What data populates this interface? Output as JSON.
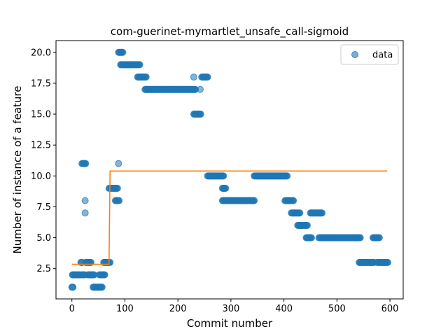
{
  "chart_data": {
    "type": "scatter",
    "title": "com-guerinet-mymartlet_unsafe_call-sigmoid",
    "xlabel": "Commit number",
    "ylabel": "Number of instance of a feature",
    "xlim": [
      -30,
      625
    ],
    "ylim": [
      0.05,
      20.95
    ],
    "xticks": [
      0,
      100,
      200,
      300,
      400,
      500,
      600
    ],
    "yticks": [
      2.5,
      5.0,
      7.5,
      10.0,
      12.5,
      15.0,
      17.5,
      20.0
    ],
    "xtick_labels": [
      "0",
      "100",
      "200",
      "300",
      "400",
      "500",
      "600"
    ],
    "ytick_labels": [
      "2.5",
      "5.0",
      "7.5",
      "10.0",
      "12.5",
      "15.0",
      "17.5",
      "20.0"
    ],
    "grid": false,
    "legend": {
      "position": "top-right",
      "entries": [
        "data"
      ]
    },
    "colors": {
      "data": "#1f77b4",
      "fit": "#ff7f0e"
    },
    "series": [
      {
        "name": "data",
        "kind": "scatter",
        "segments": [
          {
            "x": [
              0,
              2
            ],
            "y": 1
          },
          {
            "x": [
              1,
              16
            ],
            "y": 2
          },
          {
            "x": [
              17,
              19
            ],
            "y": 3
          },
          {
            "x": [
              19,
              24
            ],
            "y": 2
          },
          {
            "x": [
              19,
              26
            ],
            "y": 11
          },
          {
            "x": [
              25,
              25
            ],
            "y": 8
          },
          {
            "x": [
              25,
              25
            ],
            "y": 7
          },
          {
            "x": [
              26,
              36
            ],
            "y": 3
          },
          {
            "x": [
              30,
              42
            ],
            "y": 2
          },
          {
            "x": [
              40,
              57
            ],
            "y": 1
          },
          {
            "x": [
              52,
              62
            ],
            "y": 2
          },
          {
            "x": [
              60,
              72
            ],
            "y": 3
          },
          {
            "x": [
              70,
              86
            ],
            "y": 9
          },
          {
            "x": [
              82,
              89
            ],
            "y": 8
          },
          {
            "x": [
              88,
              88
            ],
            "y": 11
          },
          {
            "x": [
              88,
              96
            ],
            "y": 20
          },
          {
            "x": [
              92,
              128
            ],
            "y": 19
          },
          {
            "x": [
              124,
              140
            ],
            "y": 18
          },
          {
            "x": [
              138,
              233
            ],
            "y": 17
          },
          {
            "x": [
              230,
              230
            ],
            "y": 18
          },
          {
            "x": [
              230,
              243
            ],
            "y": 15
          },
          {
            "x": [
              242,
              242
            ],
            "y": 17
          },
          {
            "x": [
              245,
              256
            ],
            "y": 18
          },
          {
            "x": [
              256,
              286
            ],
            "y": 10
          },
          {
            "x": [
              284,
              290
            ],
            "y": 9
          },
          {
            "x": [
              284,
              344
            ],
            "y": 8
          },
          {
            "x": [
              344,
              406
            ],
            "y": 10
          },
          {
            "x": [
              402,
              418
            ],
            "y": 8
          },
          {
            "x": [
              414,
              430
            ],
            "y": 7
          },
          {
            "x": [
              426,
              444
            ],
            "y": 6
          },
          {
            "x": [
              442,
              452
            ],
            "y": 5
          },
          {
            "x": [
              450,
              472
            ],
            "y": 7
          },
          {
            "x": [
              466,
              544
            ],
            "y": 5
          },
          {
            "x": [
              542,
              570
            ],
            "y": 3
          },
          {
            "x": [
              568,
              580
            ],
            "y": 5
          },
          {
            "x": [
              576,
              596
            ],
            "y": 3
          }
        ]
      },
      {
        "name": "fit",
        "kind": "step",
        "x": [
          0,
          70,
          72,
          595
        ],
        "y": [
          2.85,
          2.85,
          10.4,
          10.4
        ]
      }
    ]
  }
}
